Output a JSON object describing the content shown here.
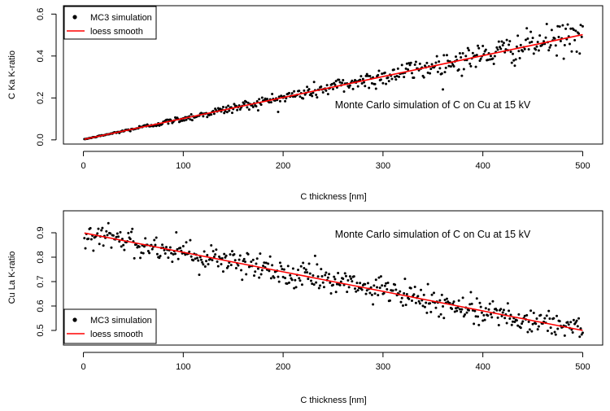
{
  "chart_data": [
    {
      "type": "scatter",
      "xlabel": "C thickness [nm]",
      "ylabel": "C Ka K-ratio",
      "annotation": "Monte Carlo simulation of C on Cu at 15 kV",
      "xlim": [
        -20,
        520
      ],
      "ylim": [
        -0.02,
        0.64
      ],
      "xticks": [
        "0",
        "100",
        "200",
        "300",
        "400",
        "500"
      ],
      "yticks": [
        "0.0",
        "0.2",
        "0.4",
        "0.6"
      ],
      "legend_position": "top-left",
      "series": [
        {
          "name": "MC3 simulation",
          "kind": "points",
          "color": "#000000",
          "trend": {
            "slope": 0.001,
            "intercept": 0.002
          },
          "noise_sd_fraction": 0.08,
          "n_points": 500,
          "x_range": [
            1,
            500
          ]
        },
        {
          "name": "loess smooth",
          "kind": "line",
          "color": "#ff0000",
          "x": [
            1,
            50,
            100,
            150,
            200,
            250,
            300,
            350,
            400,
            450,
            500
          ],
          "y": [
            0.003,
            0.052,
            0.102,
            0.152,
            0.202,
            0.252,
            0.302,
            0.352,
            0.402,
            0.452,
            0.502
          ]
        }
      ]
    },
    {
      "type": "scatter",
      "xlabel": "C thickness [nm]",
      "ylabel": "Cu La K-ratio",
      "annotation": "Monte Carlo simulation of C on Cu at 15 kV",
      "xlim": [
        -20,
        520
      ],
      "ylim": [
        0.44,
        0.99
      ],
      "xticks": [
        "0",
        "100",
        "200",
        "300",
        "400",
        "500"
      ],
      "yticks": [
        "0.5",
        "0.6",
        "0.7",
        "0.8",
        "0.9"
      ],
      "legend_position": "bottom-left",
      "series": [
        {
          "name": "MC3 simulation",
          "kind": "points",
          "color": "#000000",
          "trend": {
            "slope": -0.0008,
            "intercept": 0.9
          },
          "noise_sd": 0.028,
          "n_points": 500,
          "x_range": [
            1,
            500
          ]
        },
        {
          "name": "loess smooth",
          "kind": "line",
          "color": "#ff0000",
          "x": [
            1,
            50,
            100,
            150,
            200,
            250,
            300,
            350,
            400,
            450,
            500
          ],
          "y": [
            0.899,
            0.86,
            0.82,
            0.78,
            0.74,
            0.7,
            0.66,
            0.62,
            0.58,
            0.54,
            0.5
          ]
        }
      ]
    }
  ]
}
